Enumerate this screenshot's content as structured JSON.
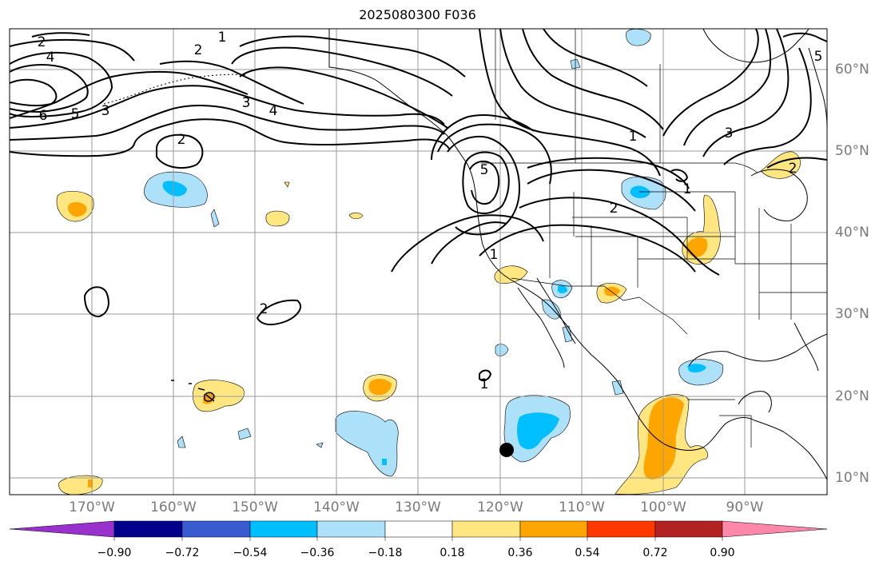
{
  "title": "2025080300 F036",
  "map": {
    "projection": "cylindrical",
    "lon_range": [
      -180,
      -80
    ],
    "lat_range": [
      8,
      65
    ],
    "features": [
      "coastlines",
      "country-borders",
      "us-state-borders"
    ],
    "gridlines": true,
    "storm_marker": {
      "name": "storm-center-marker",
      "lon": -119.5,
      "lat": 13.5,
      "color": "#000000"
    }
  },
  "lat_labels": [
    "60°N",
    "50°N",
    "40°N",
    "30°N",
    "20°N",
    "10°N"
  ],
  "lon_labels": [
    "170°W",
    "160°W",
    "150°W",
    "140°W",
    "130°W",
    "120°W",
    "110°W",
    "100°W",
    "90°W"
  ],
  "contour_labels": [
    "2",
    "4",
    "6",
    "5",
    "3",
    "1",
    "2",
    "3",
    "4",
    "2",
    "5",
    "1",
    "2",
    "1",
    "3",
    "2",
    "1",
    "1",
    "5",
    "2"
  ],
  "colorbar": {
    "extend": "both",
    "ticks": [
      "−0.90",
      "−0.72",
      "−0.54",
      "−0.36",
      "−0.18",
      "0.18",
      "0.36",
      "0.54",
      "0.72",
      "0.90"
    ],
    "colors": {
      "under": "#9932CC",
      "bins": [
        "#00008B",
        "#3A5BCF",
        "#00BFFF",
        "#ADE1FA",
        "#FFFFFF",
        "#FFE680",
        "#FFA500",
        "#FF3800",
        "#B22222"
      ],
      "over": "#FF88AA"
    }
  }
}
